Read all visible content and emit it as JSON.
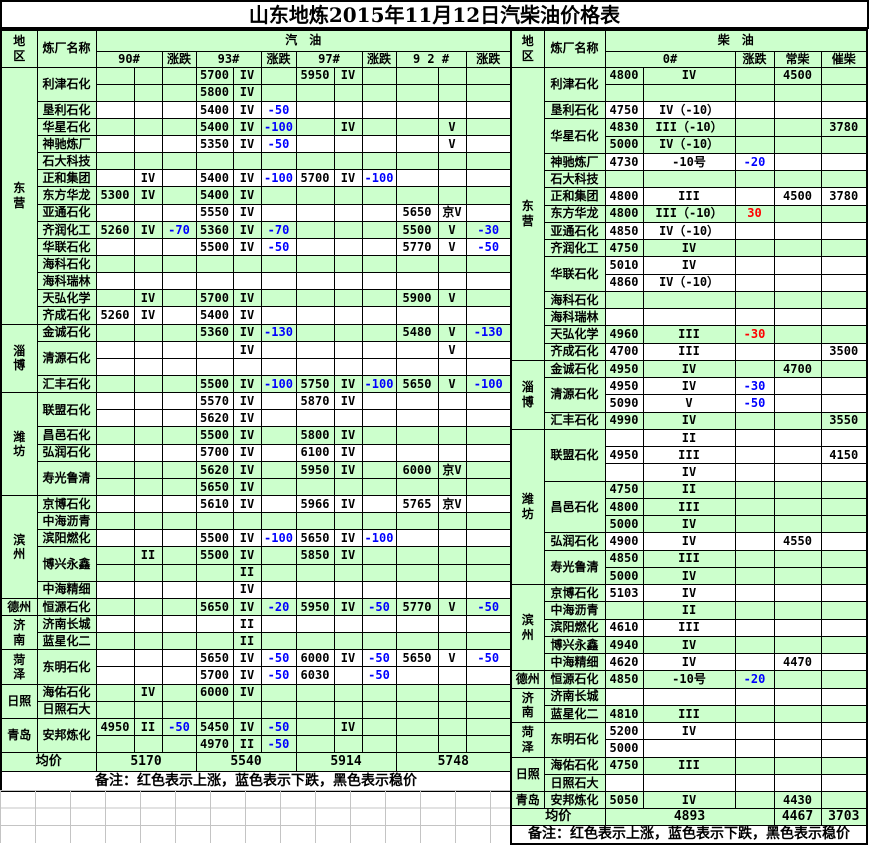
{
  "title": "山东地炼2015年11月12日汽柴油价格表",
  "note": "备注：红色表示上涨，蓝色表示下跌，黑色表示稳价",
  "labels": {
    "region": "地\n区",
    "refinery": "炼厂名称",
    "change": "涨跌",
    "avg": "均价"
  },
  "colors": {
    "bg_green": "#ccffcc",
    "down_blue": "#0000ff",
    "up_red": "#ff0000"
  },
  "gasoline": {
    "section": "汽　油",
    "grade_headers": [
      "90#",
      "93#",
      "97#",
      "9 2 #"
    ],
    "averages": [
      "5170",
      "5540",
      "5914",
      "5748"
    ],
    "groups": [
      {
        "region": "东\n营",
        "region_span": 15,
        "name": "利津石化",
        "bg": "g",
        "rows": [
          [
            "",
            "",
            "",
            "5700",
            "IV",
            "",
            "5950",
            "IV",
            "",
            "",
            "",
            ""
          ],
          [
            "",
            "",
            "",
            "5800",
            "IV",
            "",
            "",
            "",
            "",
            "",
            "",
            ""
          ]
        ]
      },
      {
        "name": "垦利石化",
        "bg": "w",
        "rows": [
          [
            "",
            "",
            "",
            "5400",
            "IV",
            "-50",
            "",
            "",
            "",
            "",
            "",
            ""
          ]
        ]
      },
      {
        "name": "华星石化",
        "bg": "g",
        "rows": [
          [
            "",
            "",
            "",
            "5400",
            "IV",
            "-100",
            "",
            "IV",
            "",
            "",
            "V",
            ""
          ]
        ]
      },
      {
        "name": "神驰炼厂",
        "bg": "w",
        "rows": [
          [
            "",
            "",
            "",
            "5350",
            "IV",
            "-50",
            "",
            "",
            "",
            "",
            "V",
            ""
          ]
        ]
      },
      {
        "name": "石大科技",
        "bg": "g",
        "rows": [
          []
        ]
      },
      {
        "name": "正和集团",
        "bg": "w",
        "rows": [
          [
            "",
            "IV",
            "",
            "5400",
            "IV",
            "-100",
            "5700",
            "IV",
            "-100",
            "",
            "",
            ""
          ]
        ]
      },
      {
        "name": "东方华龙",
        "bg": "g",
        "rows": [
          [
            "5300",
            "IV",
            "",
            "5400",
            "IV",
            "",
            "",
            "",
            "",
            "",
            "",
            ""
          ]
        ]
      },
      {
        "name": "亚通石化",
        "bg": "w",
        "rows": [
          [
            "",
            "",
            "",
            "5550",
            "IV",
            "",
            "",
            "",
            "",
            "5650",
            "京V",
            ""
          ]
        ]
      },
      {
        "name": "齐润化工",
        "bg": "g",
        "rows": [
          [
            "5260",
            "IV",
            "-70",
            "5360",
            "IV",
            "-70",
            "",
            "",
            "",
            "5500",
            "V",
            "-30"
          ]
        ]
      },
      {
        "name": "华联石化",
        "bg": "w",
        "rows": [
          [
            "",
            "",
            "",
            "5500",
            "IV",
            "-50",
            "",
            "",
            "",
            "5770",
            "V",
            "-50"
          ]
        ]
      },
      {
        "name": "海科石化",
        "bg": "g",
        "rows": [
          []
        ]
      },
      {
        "name": "海科瑞林",
        "bg": "w",
        "rows": [
          []
        ]
      },
      {
        "name": "天弘化学",
        "bg": "g",
        "rows": [
          [
            "",
            "IV",
            "",
            "5700",
            "IV",
            "",
            "",
            "",
            "",
            "5900",
            "V",
            ""
          ]
        ]
      },
      {
        "name": "齐成石化",
        "bg": "w",
        "rows": [
          [
            "5260",
            "IV",
            "",
            "5400",
            "IV",
            "",
            "",
            "",
            "",
            "",
            "",
            ""
          ]
        ]
      },
      {
        "region": "淄\n博",
        "region_span": 4,
        "name": "金诚石化",
        "bg": "g",
        "rows": [
          [
            "",
            "",
            "",
            "5360",
            "IV",
            "-130",
            "",
            "",
            "",
            "5480",
            "V",
            "-130"
          ]
        ]
      },
      {
        "name": "清源石化",
        "bg": "w",
        "rows": [
          [
            "",
            "",
            "",
            "",
            "IV",
            "",
            "",
            "",
            "",
            "",
            "V",
            ""
          ],
          []
        ]
      },
      {
        "name": "汇丰石化",
        "bg": "g",
        "rows": [
          [
            "",
            "",
            "",
            "5500",
            "IV",
            "-100",
            "5750",
            "IV",
            "-100",
            "5650",
            "V",
            "-100"
          ]
        ]
      },
      {
        "region": "潍\n坊",
        "region_span": 6,
        "name": "联盟石化",
        "bg": "w",
        "rows": [
          [
            "",
            "",
            "",
            "5570",
            "IV",
            "",
            "5870",
            "IV",
            "",
            "",
            "",
            ""
          ],
          [
            "",
            "",
            "",
            "5620",
            "IV",
            "",
            "",
            "",
            "",
            "",
            "",
            ""
          ]
        ]
      },
      {
        "name": "昌邑石化",
        "bg": "g",
        "rows": [
          [
            "",
            "",
            "",
            "5500",
            "IV",
            "",
            "5800",
            "IV",
            "",
            "",
            "",
            ""
          ]
        ]
      },
      {
        "name": "弘润石化",
        "bg": "w",
        "rows": [
          [
            "",
            "",
            "",
            "5700",
            "IV",
            "",
            "6100",
            "IV",
            "",
            "",
            "",
            ""
          ]
        ]
      },
      {
        "name": "寿光鲁清",
        "bg": "g",
        "rows": [
          [
            "",
            "",
            "",
            "5620",
            "IV",
            "",
            "5950",
            "IV",
            "",
            "6000",
            "京V",
            ""
          ],
          [
            "",
            "",
            "",
            "5650",
            "IV",
            "",
            "",
            "",
            "",
            "",
            "",
            ""
          ]
        ]
      },
      {
        "region": "滨\n州",
        "region_span": 6,
        "name": "京博石化",
        "bg": "w",
        "rows": [
          [
            "",
            "",
            "",
            "5610",
            "IV",
            "",
            "5966",
            "IV",
            "",
            "5765",
            "京V",
            ""
          ]
        ]
      },
      {
        "name": "中海沥青",
        "bg": "g",
        "rows": [
          []
        ]
      },
      {
        "name": "滨阳燃化",
        "bg": "w",
        "rows": [
          [
            "",
            "",
            "",
            "5500",
            "IV",
            "-100",
            "5650",
            "IV",
            "-100",
            "",
            "",
            ""
          ]
        ]
      },
      {
        "name": "博兴永鑫",
        "bg": "g",
        "rows": [
          [
            "",
            "II",
            "",
            "5500",
            "IV",
            "",
            "5850",
            "IV",
            "",
            "",
            "",
            ""
          ],
          [
            "",
            "",
            "",
            "",
            "II",
            "",
            "",
            "",
            "",
            "",
            "",
            ""
          ]
        ]
      },
      {
        "name": "中海精细",
        "bg": "w",
        "rows": [
          [
            "",
            "",
            "",
            "",
            "IV",
            "",
            "",
            "",
            "",
            "",
            "",
            ""
          ]
        ]
      },
      {
        "region": "德州",
        "region_span": 1,
        "name": "恒源石化",
        "bg": "g",
        "rows": [
          [
            "",
            "",
            "",
            "5650",
            "IV",
            "-20",
            "5950",
            "IV",
            "-50",
            "5770",
            "V",
            "-50"
          ]
        ]
      },
      {
        "region": "济\n南",
        "region_span": 2,
        "name": "济南长城",
        "bg": "w",
        "rows": [
          [
            "",
            "",
            "",
            "",
            "II",
            "",
            "",
            "",
            "",
            "",
            "",
            ""
          ]
        ]
      },
      {
        "name": "蓝星化二",
        "bg": "g",
        "rows": [
          [
            "",
            "",
            "",
            "",
            "II",
            "",
            "",
            "",
            "",
            "",
            "",
            ""
          ]
        ]
      },
      {
        "region": "菏\n泽",
        "region_span": 2,
        "name": "东明石化",
        "bg": "w",
        "rows": [
          [
            "",
            "",
            "",
            "5650",
            "IV",
            "-50",
            "6000",
            "IV",
            "-50",
            "5650",
            "V",
            "-50"
          ],
          [
            "",
            "",
            "",
            "5700",
            "IV",
            "-50",
            "6030",
            "",
            "-50",
            "",
            "",
            ""
          ]
        ]
      },
      {
        "region": "日照",
        "region_span": 2,
        "name": "海佑石化",
        "bg": "g",
        "rows": [
          [
            "",
            "IV",
            "",
            "6000",
            "IV",
            "",
            "",
            "",
            "",
            "",
            "",
            ""
          ]
        ]
      },
      {
        "name": "日照石大",
        "bg": "g",
        "rows": [
          []
        ]
      },
      {
        "region": "青岛",
        "region_span": 2,
        "name": "安邦炼化",
        "bg": "g",
        "rows": [
          [
            "4950",
            "II",
            "-50",
            "5450",
            "IV",
            "-50",
            "",
            "IV",
            "",
            "",
            "",
            ""
          ],
          [
            "",
            "",
            "",
            "4970",
            "II",
            "-50",
            "",
            "",
            "",
            "",
            "",
            ""
          ]
        ]
      }
    ]
  },
  "diesel": {
    "section": "柴　油",
    "col_headers": [
      "0#",
      "涨跌",
      "常柴",
      "催柴"
    ],
    "averages": [
      "4893",
      "4467",
      "3703"
    ],
    "groups": [
      {
        "region": "东\n营",
        "region_span": 17,
        "name": "利津石化",
        "bg": "g",
        "rows": [
          [
            "4800",
            "IV",
            "",
            "4500",
            ""
          ],
          []
        ]
      },
      {
        "name": "垦利石化",
        "bg": "w",
        "rows": [
          [
            "4750",
            "IV（-10）",
            "",
            "",
            ""
          ]
        ]
      },
      {
        "name": "华星石化",
        "bg": "g",
        "rows": [
          [
            "4830",
            "III（-10）",
            "",
            "",
            "3780"
          ],
          [
            "5000",
            "IV（-10）",
            "",
            "",
            ""
          ]
        ]
      },
      {
        "name": "神驰炼厂",
        "bg": "w",
        "rows": [
          [
            "4730",
            "-10号",
            "-20",
            "",
            ""
          ]
        ]
      },
      {
        "name": "石大科技",
        "bg": "g",
        "rows": [
          []
        ]
      },
      {
        "name": "正和集团",
        "bg": "w",
        "rows": [
          [
            "4800",
            "III",
            "",
            "4500",
            "3780"
          ]
        ]
      },
      {
        "name": "东方华龙",
        "bg": "g",
        "rows": [
          [
            "4800",
            "III（-10）",
            "30",
            "",
            ""
          ]
        ]
      },
      {
        "name": "亚通石化",
        "bg": "w",
        "rows": [
          [
            "4850",
            "IV（-10）",
            "",
            "",
            ""
          ]
        ]
      },
      {
        "name": "齐润化工",
        "bg": "g",
        "rows": [
          [
            "4750",
            "IV",
            "",
            "",
            ""
          ]
        ]
      },
      {
        "name": "华联石化",
        "bg": "w",
        "rows": [
          [
            "5010",
            "IV",
            "",
            "",
            ""
          ],
          [
            "4860",
            "IV（-10）",
            "",
            "",
            ""
          ]
        ]
      },
      {
        "name": "海科石化",
        "bg": "g",
        "rows": [
          []
        ]
      },
      {
        "name": "海科瑞林",
        "bg": "w",
        "rows": [
          []
        ]
      },
      {
        "name": "天弘化学",
        "bg": "g",
        "rows": [
          [
            "4960",
            "III",
            {
              "v": "-30",
              "color": "red"
            },
            "",
            ""
          ]
        ]
      },
      {
        "name": "齐成石化",
        "bg": "w",
        "rows": [
          [
            "4700",
            "III",
            "",
            "",
            "3500"
          ]
        ]
      },
      {
        "region": "淄\n博",
        "region_span": 4,
        "name": "金诚石化",
        "bg": "g",
        "rows": [
          [
            "4950",
            "IV",
            "",
            "4700",
            ""
          ]
        ]
      },
      {
        "name": "清源石化",
        "bg": "w",
        "rows": [
          [
            "4950",
            "IV",
            "-30",
            "",
            ""
          ],
          [
            "5090",
            "V",
            "-50",
            "",
            ""
          ]
        ]
      },
      {
        "name": "汇丰石化",
        "bg": "g",
        "rows": [
          [
            "4990",
            "IV",
            "",
            "",
            "3550"
          ]
        ]
      },
      {
        "region": "潍\n坊",
        "region_span": 9,
        "name": "联盟石化",
        "bg": "w",
        "rows": [
          [
            "",
            "II",
            "",
            "",
            ""
          ],
          [
            "4950",
            "III",
            "",
            "",
            "4150"
          ],
          [
            "",
            "IV",
            "",
            "",
            ""
          ]
        ]
      },
      {
        "name": "昌邑石化",
        "bg": "g",
        "rows": [
          [
            "4750",
            "II",
            "",
            "",
            ""
          ],
          [
            "4800",
            "III",
            "",
            "",
            ""
          ],
          [
            "5000",
            "IV",
            "",
            "",
            ""
          ]
        ]
      },
      {
        "name": "弘润石化",
        "bg": "w",
        "rows": [
          [
            "4900",
            "IV",
            "",
            "4550",
            ""
          ]
        ]
      },
      {
        "name": "寿光鲁清",
        "bg": "g",
        "rows": [
          [
            "4850",
            "III",
            "",
            "",
            ""
          ],
          [
            "5000",
            "IV",
            "",
            "",
            ""
          ]
        ]
      },
      {
        "region": "滨\n州",
        "region_span": 5,
        "name": "京博石化",
        "bg": "w",
        "rows": [
          [
            "5103",
            "IV",
            "",
            "",
            ""
          ]
        ]
      },
      {
        "name": "中海沥青",
        "bg": "g",
        "rows": [
          [
            "",
            "II",
            "",
            "",
            ""
          ]
        ]
      },
      {
        "name": "滨阳燃化",
        "bg": "w",
        "rows": [
          [
            "4610",
            "III",
            "",
            "",
            ""
          ]
        ]
      },
      {
        "name": "博兴永鑫",
        "bg": "g",
        "rows": [
          [
            "4940",
            "IV",
            "",
            "",
            ""
          ]
        ]
      },
      {
        "name": "中海精细",
        "bg": "w",
        "rows": [
          [
            "4620",
            "IV",
            "",
            "4470",
            ""
          ]
        ]
      },
      {
        "region": "德州",
        "region_span": 1,
        "name": "恒源石化",
        "bg": "g",
        "rows": [
          [
            "4850",
            "-10号",
            "-20",
            "",
            ""
          ]
        ]
      },
      {
        "region": "济\n南",
        "region_span": 2,
        "name": "济南长城",
        "bg": "w",
        "rows": [
          []
        ]
      },
      {
        "name": "蓝星化二",
        "bg": "g",
        "rows": [
          [
            "4810",
            "III",
            "",
            "",
            ""
          ]
        ]
      },
      {
        "region": "菏\n泽",
        "region_span": 2,
        "name": "东明石化",
        "bg": "w",
        "rows": [
          [
            "5200",
            "IV",
            "",
            "",
            ""
          ],
          [
            "5000",
            "",
            "",
            "",
            ""
          ]
        ]
      },
      {
        "region": "日照",
        "region_span": 2,
        "name": "海佑石化",
        "bg": "g",
        "rows": [
          [
            "4750",
            "III",
            "",
            "",
            ""
          ]
        ]
      },
      {
        "name": "日照石大",
        "bg": "w",
        "rows": [
          []
        ]
      },
      {
        "region": "青岛",
        "region_span": 1,
        "name": "安邦炼化",
        "bg": "g",
        "rows": [
          [
            "5050",
            "IV",
            "",
            "4430",
            ""
          ]
        ]
      }
    ]
  }
}
